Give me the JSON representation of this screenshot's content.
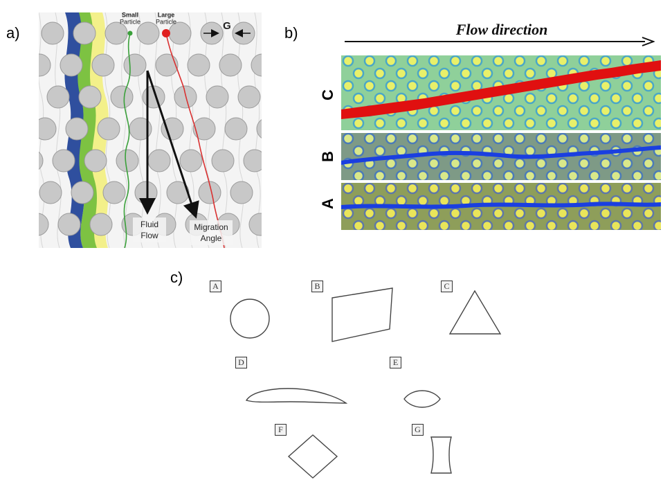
{
  "panel_a": {
    "label": "a)",
    "small_particle": [
      "Small",
      "Particle"
    ],
    "large_particle": [
      "Large",
      "Particle"
    ],
    "gap_symbol": "G",
    "fluid_flow": [
      "Fluid",
      "Flow"
    ],
    "migration_angle": [
      "Migration",
      "Angle"
    ]
  },
  "panel_b": {
    "label": "b)",
    "flow_direction": "Flow direction",
    "strip_labels": [
      "C",
      "B",
      "A"
    ]
  },
  "panel_c": {
    "label": "c)",
    "shapes": [
      {
        "letter": "A",
        "shape": "circle"
      },
      {
        "letter": "B",
        "shape": "parallelogram"
      },
      {
        "letter": "C",
        "shape": "triangle"
      },
      {
        "letter": "D",
        "shape": "airfoil"
      },
      {
        "letter": "E",
        "shape": "lens"
      },
      {
        "letter": "F",
        "shape": "diamond"
      },
      {
        "letter": "G",
        "shape": "i-beam"
      }
    ]
  },
  "colors": {
    "post": "#c8c8c8",
    "blue_stream": "#2f4f9e",
    "green_stream": "#7dc242",
    "yellow_stream": "#f3f08a",
    "small_particle_path": "#3aa03a",
    "large_particle_path": "#d93030",
    "strip_c_trace": "#e01010",
    "strip_ab_trace": "#1a3fe0"
  }
}
